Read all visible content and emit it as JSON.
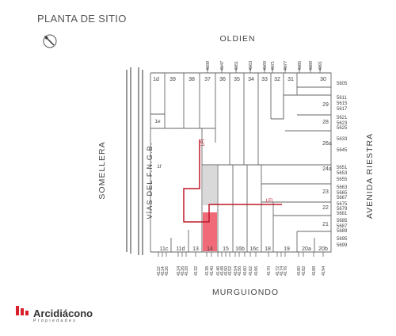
{
  "title": "PLANTA DE SITIO",
  "streets": {
    "north": "OLDIEN",
    "south": "MURGUIONDO",
    "west": "SOMELLERA",
    "east": "AVENIDA RIESTRA",
    "rail": "VÍAS DEL F.N.G.B."
  },
  "top_house_numbers": [
    "4139",
    "4147",
    "4151",
    "4163",
    "4169",
    "4171",
    "4177",
    "4185",
    "4189",
    "4191"
  ],
  "bottom_house_numbers": [
    "4112",
    "4114",
    "4116",
    "4124",
    "4126",
    "4128",
    "4132",
    "4138",
    "4140",
    "4146",
    "4148",
    "4150",
    "4152",
    "4154",
    "4156",
    "4160",
    "4162",
    "4166",
    "4170",
    "4172",
    "4174",
    "4176",
    "4180",
    "4182",
    "4188",
    "4194"
  ],
  "right_house_numbers": [
    "5605",
    "5611",
    "5615",
    "5617",
    "5621",
    "5623",
    "5625",
    "5633",
    "5645",
    "5651",
    "5653",
    "5655",
    "5663",
    "5665",
    "5667",
    "5675",
    "5679",
    "5681",
    "5685",
    "5687",
    "5689",
    "5695",
    "5699"
  ],
  "lots_top": [
    "1d",
    "39",
    "38",
    "37",
    "36",
    "35",
    "34",
    "33",
    "32",
    "31",
    "30"
  ],
  "lots_bottom": [
    "11c",
    "11d",
    "13",
    "14",
    "15",
    "16b",
    "16c",
    "18",
    "19",
    "20a",
    "20b"
  ],
  "lots_right": [
    "29",
    "28",
    "26a",
    "24a",
    "23",
    "22",
    "21"
  ],
  "lots_left": [
    "1e",
    "1f"
  ],
  "lfi_labels": [
    "LFI",
    "LFI"
  ],
  "highlighted_lot": "14",
  "brand": {
    "name": "Arcidiácono",
    "tagline": "Propiedades"
  },
  "colors": {
    "highlight": "#f06a78",
    "line": "#c0182a",
    "shade": "#d9d9d9",
    "ink": "#555555",
    "brand_red": "#d81f2a"
  }
}
